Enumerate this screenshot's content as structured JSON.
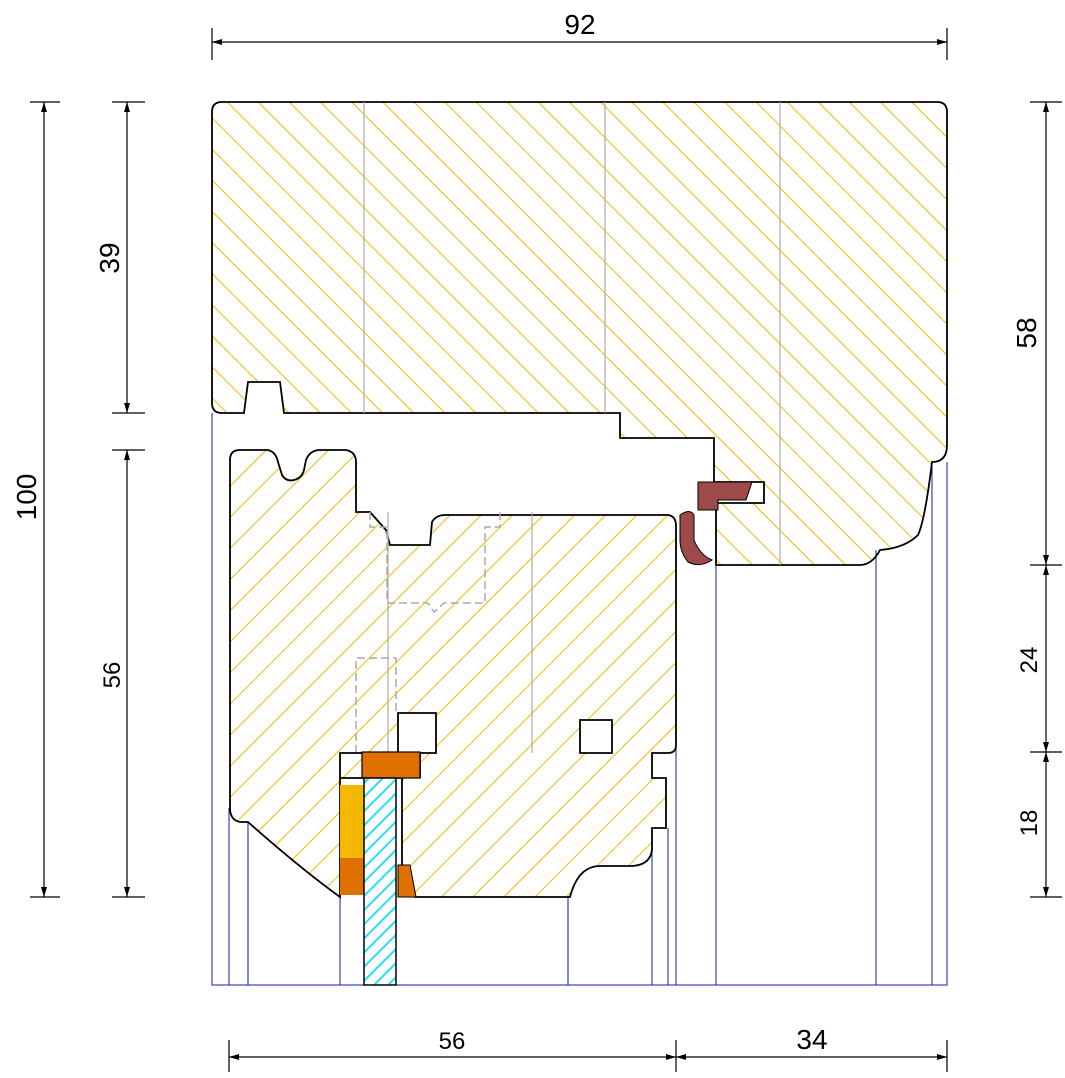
{
  "dimensions": {
    "overall_width": "92",
    "overall_height": "100",
    "frame_height": "39",
    "sash_height": "56",
    "right_upper": "58",
    "right_middle": "24",
    "right_lower": "18",
    "bottom_left": "56",
    "bottom_right": "34"
  }
}
